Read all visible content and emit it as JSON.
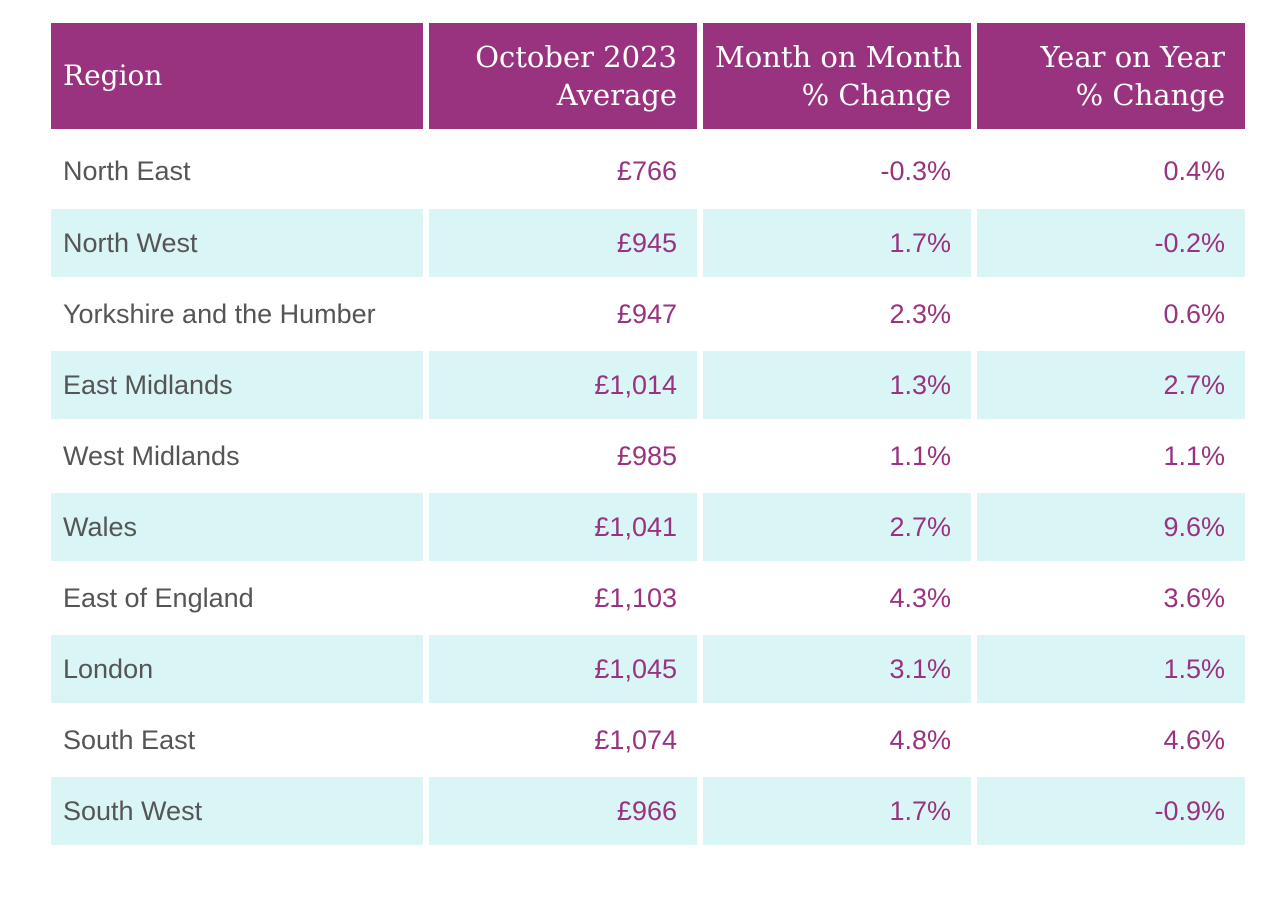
{
  "table": {
    "headers": {
      "region": "Region",
      "average": [
        "October 2023",
        "Average"
      ],
      "mom": [
        "Month on Month",
        "% Change"
      ],
      "yoy": [
        "Year on Year",
        "% Change"
      ]
    },
    "rows": [
      {
        "region": "North East",
        "average": "£766",
        "mom": "-0.3%",
        "yoy": "0.4%"
      },
      {
        "region": "North West",
        "average": "£945",
        "mom": "1.7%",
        "yoy": "-0.2%"
      },
      {
        "region": "Yorkshire and the Humber",
        "average": "£947",
        "mom": "2.3%",
        "yoy": "0.6%"
      },
      {
        "region": "East Midlands",
        "average": "£1,014",
        "mom": "1.3%",
        "yoy": "2.7%"
      },
      {
        "region": "West Midlands",
        "average": "£985",
        "mom": "1.1%",
        "yoy": "1.1%"
      },
      {
        "region": "Wales",
        "average": "£1,041",
        "mom": "2.7%",
        "yoy": "9.6%"
      },
      {
        "region": "East of England",
        "average": "£1,103",
        "mom": "4.3%",
        "yoy": "3.6%"
      },
      {
        "region": "London",
        "average": "£1,045",
        "mom": "3.1%",
        "yoy": "1.5%"
      },
      {
        "region": "South East",
        "average": "£1,074",
        "mom": "4.8%",
        "yoy": "4.6%"
      },
      {
        "region": "South West",
        "average": "£966",
        "mom": "1.7%",
        "yoy": "-0.9%"
      }
    ]
  },
  "colors": {
    "header_bg": "#993380",
    "header_text": "#ffffff",
    "shaded_row": "#d9f5f5",
    "value_text": "#993380",
    "region_text": "#555555"
  }
}
